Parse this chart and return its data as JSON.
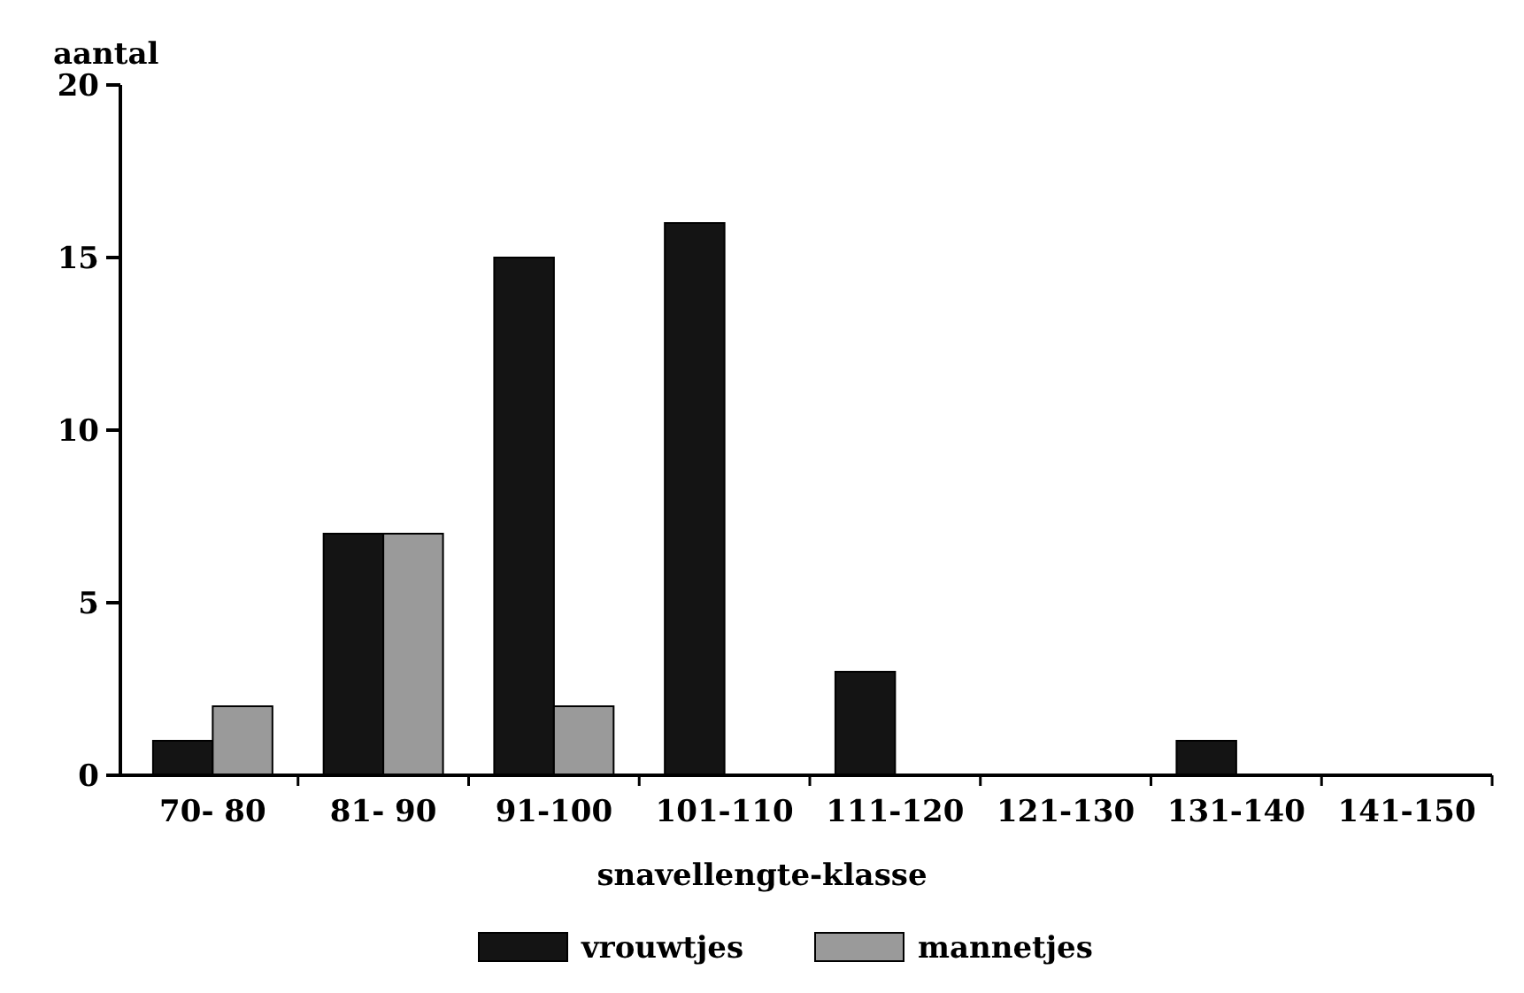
{
  "chart_data": {
    "type": "bar",
    "ylabel": "aantal",
    "xlabel": "snavellengte-klasse",
    "categories": [
      "70- 80",
      "81- 90",
      "91-100",
      "101-110",
      "111-120",
      "121-130",
      "131-140",
      "141-150"
    ],
    "series": [
      {
        "name": "vrouwtjes",
        "color": "#141414",
        "values": [
          1,
          7,
          15,
          16,
          3,
          0,
          1,
          0
        ]
      },
      {
        "name": "mannetjes",
        "color": "#9a9a9a",
        "values": [
          2,
          7,
          2,
          0,
          0,
          0,
          0,
          0
        ]
      }
    ],
    "ylim": [
      0,
      20
    ],
    "yticks": [
      0,
      5,
      10,
      15,
      20
    ],
    "grid": false,
    "legend": "bottom"
  }
}
